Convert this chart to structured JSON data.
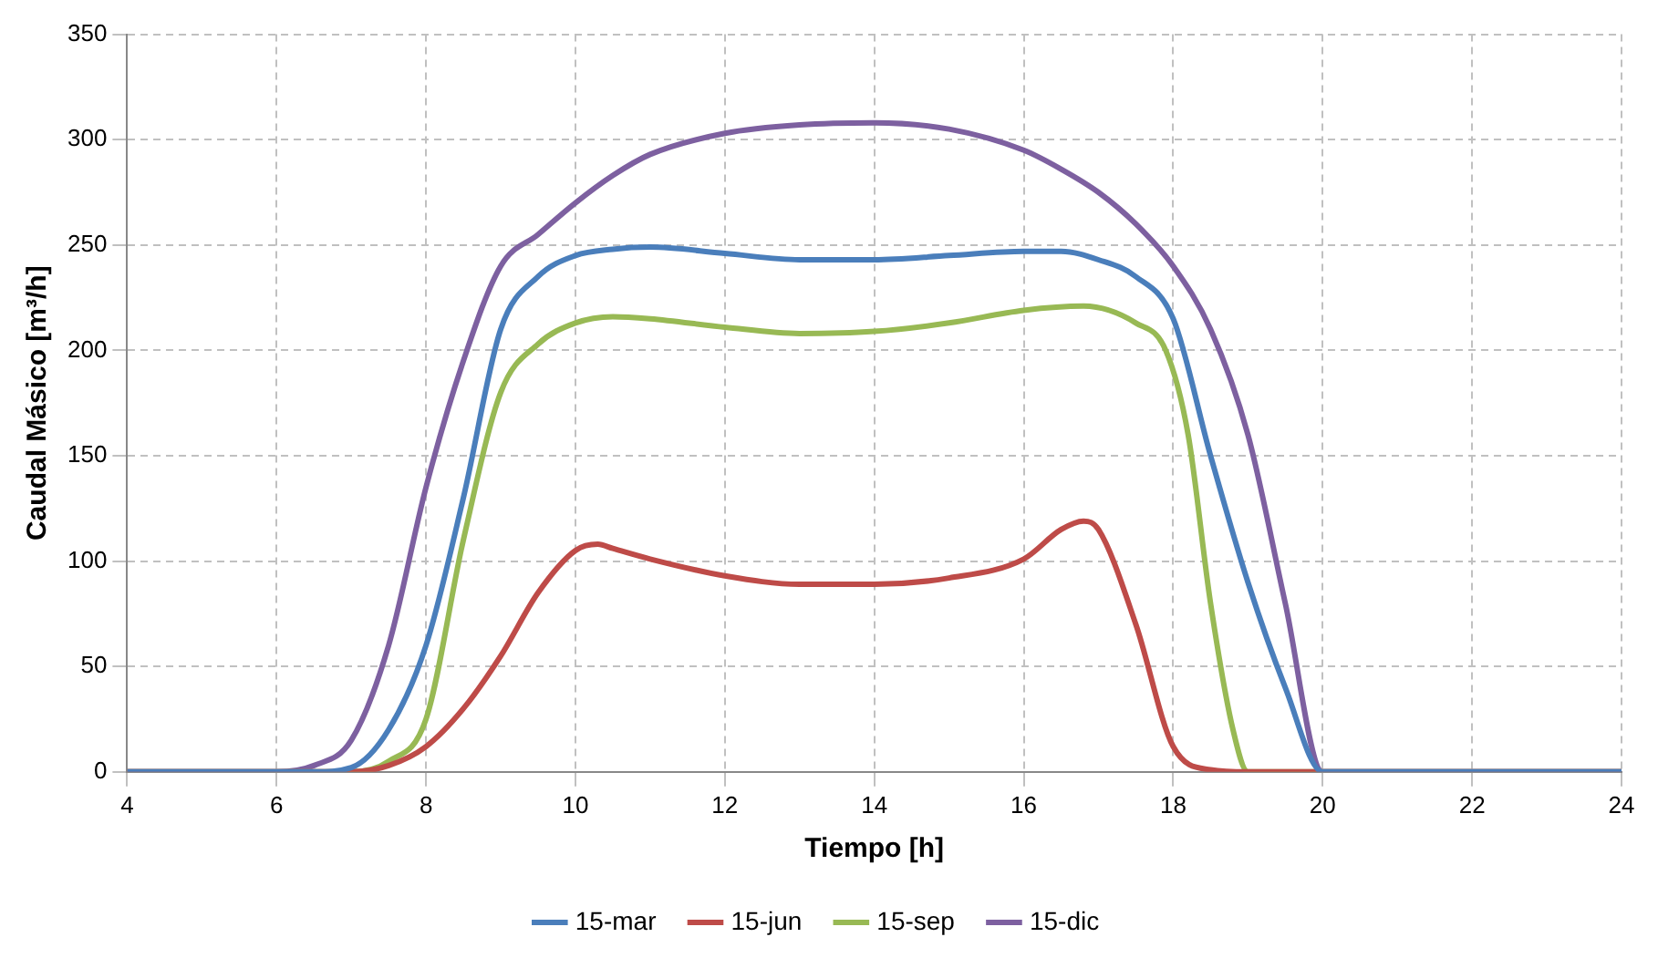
{
  "chart_data": {
    "type": "line",
    "xlabel": "Tiempo [h]",
    "ylabel": "Caudal Másico [m³/h]",
    "xlim": [
      4,
      24
    ],
    "xticks": [
      4,
      6,
      8,
      10,
      12,
      14,
      16,
      18,
      20,
      22,
      24
    ],
    "ylim": [
      0,
      350
    ],
    "yticks": [
      0,
      50,
      100,
      150,
      200,
      250,
      300,
      350
    ],
    "grid": true,
    "legend": "bottom",
    "marker": "none",
    "line_style": "solid",
    "series": [
      {
        "name": "15-mar",
        "color": "#4a7ebb",
        "x": [
          4,
          6,
          6.5,
          7,
          7.5,
          8,
          8.5,
          9,
          9.5,
          10,
          10.5,
          11,
          12,
          13,
          14,
          15,
          16,
          16.5,
          17,
          17.5,
          18,
          18.5,
          19,
          19.5,
          20,
          24
        ],
        "values": [
          0,
          0,
          0,
          2,
          20,
          60,
          130,
          210,
          235,
          245,
          248,
          249,
          246,
          243,
          243,
          245,
          247,
          247,
          243,
          235,
          215,
          150,
          90,
          40,
          0,
          0
        ]
      },
      {
        "name": "15-jun",
        "color": "#be4b48",
        "x": [
          4,
          7,
          7.5,
          8,
          8.5,
          9,
          9.5,
          10,
          10.3,
          10.5,
          11,
          12,
          13,
          14,
          15,
          16,
          16.5,
          16.8,
          17,
          17.5,
          18,
          18.5,
          19,
          24
        ],
        "values": [
          0,
          0,
          3,
          12,
          30,
          55,
          85,
          105,
          108,
          106,
          101,
          93,
          89,
          89,
          92,
          101,
          115,
          119,
          115,
          70,
          12,
          1,
          0,
          0
        ]
      },
      {
        "name": "15-sep",
        "color": "#98b954",
        "x": [
          4,
          7,
          7.5,
          8,
          8.5,
          9,
          9.5,
          10,
          10.5,
          11,
          12,
          13,
          14,
          15,
          16,
          16.8,
          17.5,
          17.9,
          18.2,
          18.5,
          18.8,
          19,
          24
        ],
        "values": [
          0,
          0,
          5,
          25,
          110,
          180,
          203,
          213,
          216,
          215,
          211,
          208,
          209,
          213,
          219,
          221,
          213,
          200,
          160,
          80,
          20,
          0,
          0
        ]
      },
      {
        "name": "15-dic",
        "color": "#7d60a0",
        "x": [
          4,
          6,
          6.5,
          7,
          7.5,
          8,
          8.5,
          9,
          9.5,
          10,
          10.5,
          11,
          12,
          13,
          14,
          15,
          16,
          16.5,
          17,
          17.5,
          18,
          18.5,
          19,
          19.5,
          20,
          24
        ],
        "values": [
          0,
          0,
          3,
          15,
          60,
          135,
          195,
          240,
          255,
          270,
          283,
          293,
          303,
          307,
          308,
          305,
          295,
          286,
          275,
          260,
          240,
          210,
          160,
          80,
          0,
          0
        ]
      }
    ]
  }
}
